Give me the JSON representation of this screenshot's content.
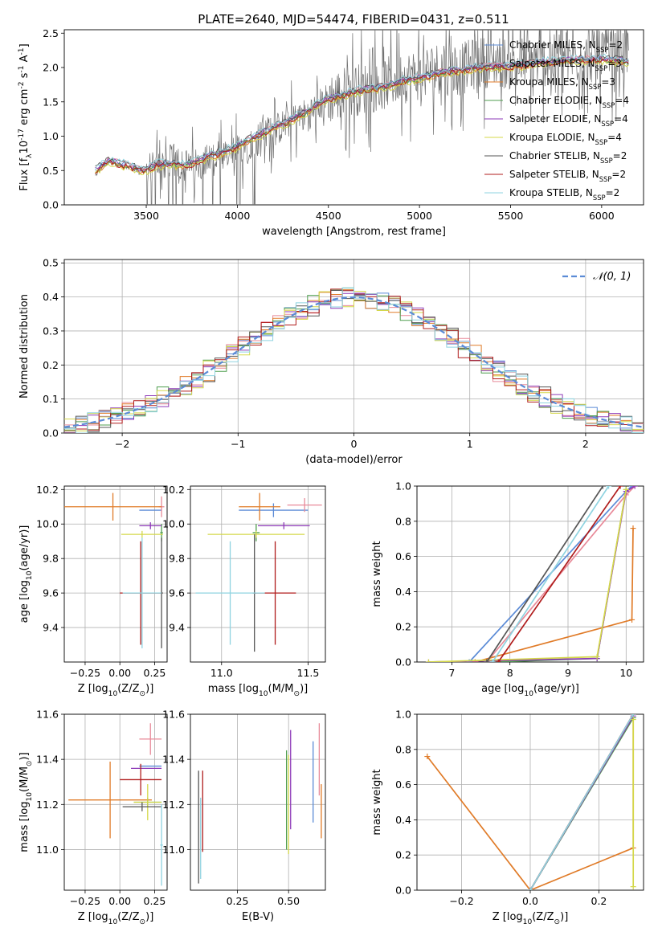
{
  "figure": {
    "title": "PLATE=2640, MJD=54474, FIBERID=0431, z=0.511"
  },
  "series_styles": [
    {
      "name": "Chabrier MILES, N$_{SSP}$=2",
      "label_main": "Chabrier MILES, N",
      "label_sub": "SSP",
      "label_end": "=2",
      "color": "#5b8bd6"
    },
    {
      "name": "Salpeter MILES, N$_{SSP}$=3",
      "label_main": "Salpeter MILES, N",
      "label_sub": "SSP",
      "label_end": "=3",
      "color": "#e88a99"
    },
    {
      "name": "Kroupa MILES, N$_{SSP}$=3",
      "label_main": "Kroupa MILES, N",
      "label_sub": "SSP",
      "label_end": "=3",
      "color": "#e07b28"
    },
    {
      "name": "Chabrier ELODIE, N$_{SSP}$=4",
      "label_main": "Chabrier ELODIE, N",
      "label_sub": "SSP",
      "label_end": "=4",
      "color": "#4f9e4f"
    },
    {
      "name": "Salpeter ELODIE, N$_{SSP}$=4",
      "label_main": "Salpeter ELODIE, N",
      "label_sub": "SSP",
      "label_end": "=4",
      "color": "#8e3ab8"
    },
    {
      "name": "Kroupa ELODIE, N$_{SSP}$=4",
      "label_main": "Kroupa ELODIE, N",
      "label_sub": "SSP",
      "label_end": "=4",
      "color": "#d4d84a"
    },
    {
      "name": "Chabrier STELIB, N$_{SSP}$=2",
      "label_main": "Chabrier STELIB, N",
      "label_sub": "SSP",
      "label_end": "=2",
      "color": "#555555"
    },
    {
      "name": "Salpeter STELIB, N$_{SSP}$=2",
      "label_main": "Salpeter STELIB, N",
      "label_sub": "SSP",
      "label_end": "=2",
      "color": "#b01c1c"
    },
    {
      "name": "Kroupa STELIB, N$_{SSP}$=2",
      "label_main": "Kroupa STELIB, N",
      "label_sub": "SSP",
      "label_end": "=2",
      "color": "#8fd3e0"
    }
  ],
  "chart_data": [
    {
      "id": "spectrum",
      "type": "line",
      "title": "PLATE=2640, MJD=54474, FIBERID=0431, z=0.511",
      "xlabel": "wavelength [Angstrom, rest frame]",
      "ylabel": "Flux [f$_\\lambda$10$^{-17}$ erg cm$^{-2}$ s$^{-1}$ A$^{-1}$]",
      "ylabel_parts": [
        "Flux [f",
        "λ",
        "10",
        "−17",
        " erg cm",
        "−2",
        " s",
        "−1",
        " A",
        "−1",
        "]"
      ],
      "xlim": [
        3050,
        6230
      ],
      "ylim": [
        0,
        2.55
      ],
      "xticks": [
        3500,
        4000,
        4500,
        5000,
        5500,
        6000
      ],
      "xtick_labels": [
        "3500",
        "4000",
        "4500",
        "5000",
        "5500",
        "6000"
      ],
      "yticks": [
        0.0,
        0.5,
        1.0,
        1.5,
        2.0,
        2.5
      ],
      "ytick_labels": [
        "0.0",
        "0.5",
        "1.0",
        "1.5",
        "2.0",
        "2.5"
      ],
      "grid": false,
      "legend": "right",
      "data_color": "#707070",
      "data_profile": {
        "x": [
          3220,
          3260,
          3300,
          3350,
          3400,
          3450,
          3500,
          3550,
          3600,
          3650,
          3700,
          3750,
          3800,
          3850,
          3900,
          3950,
          4000,
          4100,
          4200,
          4300,
          4400,
          4500,
          4600,
          4700,
          4800,
          4900,
          5000,
          5100,
          5200,
          5300,
          5400,
          5500,
          5600,
          5700,
          5800,
          5900,
          6000,
          6100,
          6150
        ],
        "y": [
          0.42,
          0.55,
          0.62,
          0.58,
          0.55,
          0.5,
          0.5,
          0.6,
          0.62,
          0.65,
          0.58,
          0.55,
          0.62,
          0.7,
          0.65,
          0.7,
          0.78,
          0.95,
          1.08,
          1.22,
          1.35,
          1.55,
          1.65,
          1.7,
          1.75,
          1.85,
          1.9,
          2.0,
          1.95,
          2.05,
          2.1,
          2.05,
          2.1,
          2.1,
          2.1,
          2.15,
          2.15,
          2.2,
          2.15
        ]
      },
      "model_profile": {
        "x": [
          3220,
          3260,
          3300,
          3350,
          3400,
          3450,
          3500,
          3550,
          3600,
          3650,
          3700,
          3750,
          3800,
          3850,
          3900,
          3950,
          4000,
          4100,
          4200,
          4300,
          4400,
          4500,
          4600,
          4700,
          4800,
          4900,
          5000,
          5100,
          5200,
          5300,
          5400,
          5500,
          5600,
          5700,
          5800,
          5900,
          6000,
          6100,
          6150
        ],
        "y": [
          0.5,
          0.58,
          0.65,
          0.6,
          0.58,
          0.52,
          0.52,
          0.58,
          0.6,
          0.6,
          0.58,
          0.6,
          0.65,
          0.72,
          0.75,
          0.8,
          0.85,
          1.0,
          1.12,
          1.25,
          1.38,
          1.55,
          1.62,
          1.68,
          1.72,
          1.8,
          1.85,
          1.92,
          1.95,
          2.0,
          2.02,
          2.02,
          2.05,
          2.08,
          2.1,
          2.12,
          2.12,
          2.1,
          2.08
        ]
      },
      "series": [
        {
          "name": "Chabrier MILES, N$_{SSP}$=2",
          "offset": 0.0
        },
        {
          "name": "Salpeter MILES, N$_{SSP}$=3",
          "offset": 0.02
        },
        {
          "name": "Kroupa MILES, N$_{SSP}$=3",
          "offset": -0.03
        },
        {
          "name": "Chabrier ELODIE, N$_{SSP}$=4",
          "offset": -0.01
        },
        {
          "name": "Salpeter ELODIE, N$_{SSP}$=4",
          "offset": 0.01
        },
        {
          "name": "Kroupa ELODIE, N$_{SSP}$=4",
          "offset": -0.05
        },
        {
          "name": "Chabrier STELIB, N$_{SSP}$=2",
          "offset": 0.03
        },
        {
          "name": "Salpeter STELIB, N$_{SSP}$=2",
          "offset": -0.02
        },
        {
          "name": "Kroupa STELIB, N$_{SSP}$=2",
          "offset": 0.04
        }
      ]
    },
    {
      "id": "residuals",
      "type": "bar",
      "xlabel": "(data-model)/error",
      "ylabel": "Normed distribution",
      "xlim": [
        -2.5,
        2.5
      ],
      "ylim": [
        0,
        0.51
      ],
      "xticks": [
        -2,
        -1,
        0,
        1,
        2
      ],
      "xtick_labels": [
        "−2",
        "−1",
        "0",
        "1",
        "2"
      ],
      "yticks": [
        0.0,
        0.1,
        0.2,
        0.3,
        0.4,
        0.5
      ],
      "ytick_labels": [
        "0.0",
        "0.1",
        "0.2",
        "0.3",
        "0.4",
        "0.5"
      ],
      "grid": true,
      "legend": "top-right",
      "gauss_label": "𝒩(0, 1)",
      "gauss_color": "#5b8bd6",
      "bin_width": 0.1,
      "bin_start": -2.5,
      "hist_offsets": [
        0.0,
        0.015,
        -0.01,
        0.02,
        -0.015,
        0.01,
        -0.02,
        0.018,
        -0.008
      ]
    },
    {
      "id": "age_vs_Z",
      "type": "scatter",
      "xlabel": "Z [log$_{10}$(Z/Z$_\\odot$)]",
      "ylabel": "age  [log$_{10}$(age/yr)]",
      "xlim": [
        -0.4,
        0.34
      ],
      "ylim": [
        9.2,
        10.22
      ],
      "xticks": [
        -0.25,
        0.0,
        0.25
      ],
      "xtick_labels": [
        "−0.25",
        "0.00",
        "0.25"
      ],
      "yticks": [
        9.4,
        9.6,
        9.8,
        10.0,
        10.2
      ],
      "ytick_labels": [
        "9.4",
        "9.6",
        "9.8",
        "10.0",
        "10.2"
      ],
      "grid": true,
      "points": [
        {
          "series": 0,
          "x": 0.22,
          "y": 10.08,
          "xerr": 0.08,
          "yerr": 0.0
        },
        {
          "series": 1,
          "x": 0.3,
          "y": 10.1,
          "xerr": 0.02,
          "yerr": 0.06
        },
        {
          "series": 2,
          "x": -0.05,
          "y": 10.1,
          "xerr": 0.35,
          "yerr": 0.08
        },
        {
          "series": 3,
          "x": 0.3,
          "y": 9.95,
          "xerr": 0.01,
          "yerr": 0.05
        },
        {
          "series": 4,
          "x": 0.22,
          "y": 9.99,
          "xerr": 0.08,
          "yerr": 0.02
        },
        {
          "series": 5,
          "x": 0.16,
          "y": 9.94,
          "xerr": 0.15,
          "yerr": 0.02
        },
        {
          "series": 6,
          "x": 0.3,
          "y": 9.6,
          "xerr": 0.01,
          "yerr": 0.32
        },
        {
          "series": 7,
          "x": 0.15,
          "y": 9.6,
          "xerr": 0.15,
          "yerr": 0.3
        },
        {
          "series": 8,
          "x": 0.16,
          "y": 9.6,
          "xerr": 0.14,
          "yerr": 0.32
        }
      ]
    },
    {
      "id": "age_vs_mass",
      "type": "scatter",
      "xlabel": "mass [log$_{10}$(M/M$_\\odot$)]",
      "ylabel": "",
      "xlim": [
        10.82,
        11.6
      ],
      "ylim": [
        9.2,
        10.22
      ],
      "xticks": [
        11.0,
        11.5
      ],
      "xtick_labels": [
        "11.0",
        "11.5"
      ],
      "yticks": [
        9.4,
        9.6,
        9.8,
        10.0,
        10.2
      ],
      "ytick_labels": [
        "9.4",
        "9.6",
        "9.8",
        "10.0",
        "10.2"
      ],
      "grid": true,
      "points": [
        {
          "series": 0,
          "x": 11.3,
          "y": 10.08,
          "xerr": 0.2,
          "yerr": 0.04
        },
        {
          "series": 1,
          "x": 11.48,
          "y": 10.11,
          "xerr": 0.1,
          "yerr": 0.04
        },
        {
          "series": 2,
          "x": 11.22,
          "y": 10.1,
          "xerr": 0.12,
          "yerr": 0.08
        },
        {
          "series": 3,
          "x": 11.2,
          "y": 9.95,
          "xerr": 0.02,
          "yerr": 0.05
        },
        {
          "series": 4,
          "x": 11.36,
          "y": 9.99,
          "xerr": 0.15,
          "yerr": 0.02
        },
        {
          "series": 5,
          "x": 11.2,
          "y": 9.94,
          "xerr": 0.28,
          "yerr": 0.02
        },
        {
          "series": 6,
          "x": 11.19,
          "y": 9.6,
          "xerr": 0.01,
          "yerr": 0.34
        },
        {
          "series": 7,
          "x": 11.31,
          "y": 9.6,
          "xerr": 0.12,
          "yerr": 0.3
        },
        {
          "series": 8,
          "x": 11.05,
          "y": 9.6,
          "xerr": 0.2,
          "yerr": 0.3
        }
      ]
    },
    {
      "id": "mass_weight_vs_age",
      "type": "line",
      "xlabel": "age  [log$_{10}$(age/yr)]",
      "ylabel": "mass weight",
      "xlim": [
        6.4,
        10.3
      ],
      "ylim": [
        0,
        1.0
      ],
      "xticks": [
        7,
        8,
        9,
        10
      ],
      "xtick_labels": [
        "7",
        "8",
        "9",
        "10"
      ],
      "yticks": [
        0.0,
        0.2,
        0.4,
        0.6,
        0.8,
        1.0
      ],
      "ytick_labels": [
        "0.0",
        "0.2",
        "0.4",
        "0.6",
        "0.8",
        "1.0"
      ],
      "grid": true,
      "series": [
        {
          "series": 0,
          "x": [
            7.3,
            10.0,
            10.1
          ],
          "y": [
            0.0,
            0.97,
            1.0
          ]
        },
        {
          "series": 1,
          "x": [
            7.6,
            10.0,
            10.15
          ],
          "y": [
            0.0,
            0.95,
            1.0
          ]
        },
        {
          "series": 2,
          "x": [
            7.4,
            10.1,
            10.12
          ],
          "y": [
            0.0,
            0.24,
            0.76
          ]
        },
        {
          "series": 3,
          "x": [
            7.7,
            9.5,
            10.0
          ],
          "y": [
            0.0,
            0.02,
            0.98
          ]
        },
        {
          "series": 4,
          "x": [
            6.6,
            9.5,
            10.0,
            10.15
          ],
          "y": [
            0.0,
            0.02,
            0.97,
            1.0
          ]
        },
        {
          "series": 5,
          "x": [
            6.6,
            9.5,
            10.0
          ],
          "y": [
            0.0,
            0.03,
            0.98
          ]
        },
        {
          "series": 6,
          "x": [
            7.6,
            9.6
          ],
          "y": [
            0.0,
            1.0
          ]
        },
        {
          "series": 7,
          "x": [
            7.8,
            9.9
          ],
          "y": [
            0.0,
            1.0
          ]
        },
        {
          "series": 8,
          "x": [
            7.7,
            9.7
          ],
          "y": [
            0.0,
            1.0
          ]
        }
      ]
    },
    {
      "id": "mass_vs_Z",
      "type": "scatter",
      "xlabel": "Z [log$_{10}$(Z/Z$_\\odot$)]",
      "ylabel": "mass [log$_{10}$(M/M$_\\odot$)]",
      "xlim": [
        -0.4,
        0.34
      ],
      "ylim": [
        10.82,
        11.6
      ],
      "xticks": [
        -0.25,
        0.0,
        0.25
      ],
      "xtick_labels": [
        "−0.25",
        "0.00",
        "0.25"
      ],
      "yticks": [
        11.0,
        11.2,
        11.4,
        11.6
      ],
      "ytick_labels": [
        "11.0",
        "11.2",
        "11.4",
        "11.6"
      ],
      "grid": true,
      "points": [
        {
          "series": 0,
          "x": 0.22,
          "y": 11.37,
          "xerr": 0.08,
          "yerr": 0.0
        },
        {
          "series": 1,
          "x": 0.22,
          "y": 11.49,
          "xerr": 0.08,
          "yerr": 0.07
        },
        {
          "series": 2,
          "x": -0.07,
          "y": 11.22,
          "xerr": 0.3,
          "yerr": 0.17
        },
        {
          "series": 3,
          "x": 0.2,
          "y": 11.21,
          "xerr": 0.1,
          "yerr": 0.02
        },
        {
          "series": 4,
          "x": 0.19,
          "y": 11.36,
          "xerr": 0.11,
          "yerr": 0.0
        },
        {
          "series": 5,
          "x": 0.2,
          "y": 11.21,
          "xerr": 0.1,
          "yerr": 0.08
        },
        {
          "series": 6,
          "x": 0.16,
          "y": 11.19,
          "xerr": 0.14,
          "yerr": 0.02
        },
        {
          "series": 7,
          "x": 0.15,
          "y": 11.31,
          "xerr": 0.15,
          "yerr": 0.07
        },
        {
          "series": 8,
          "x": 0.3,
          "y": 11.02,
          "xerr": 0.01,
          "yerr": 0.18
        }
      ]
    },
    {
      "id": "mass_vs_ebv",
      "type": "scatter",
      "xlabel": "E(B-V)",
      "ylabel": "",
      "xlim": [
        0.02,
        0.68
      ],
      "ylim": [
        10.82,
        11.6
      ],
      "xticks": [
        0.25,
        0.5
      ],
      "xtick_labels": [
        "0.25",
        "0.50"
      ],
      "yticks": [
        11.0,
        11.2,
        11.4,
        11.6
      ],
      "ytick_labels": [
        "11.0",
        "11.2",
        "11.4",
        "11.6"
      ],
      "grid": true,
      "points": [
        {
          "series": 0,
          "x": 0.62,
          "y": 11.3,
          "xerr": 0.0,
          "yerr": 0.18
        },
        {
          "series": 1,
          "x": 0.65,
          "y": 11.4,
          "xerr": 0.0,
          "yerr": 0.16
        },
        {
          "series": 2,
          "x": 0.66,
          "y": 11.17,
          "xerr": 0.0,
          "yerr": 0.12
        },
        {
          "series": 3,
          "x": 0.49,
          "y": 11.22,
          "xerr": 0.0,
          "yerr": 0.22
        },
        {
          "series": 4,
          "x": 0.51,
          "y": 11.31,
          "xerr": 0.0,
          "yerr": 0.22
        },
        {
          "series": 5,
          "x": 0.5,
          "y": 11.2,
          "xerr": 0.0,
          "yerr": 0.22
        },
        {
          "series": 6,
          "x": 0.06,
          "y": 11.1,
          "xerr": 0.0,
          "yerr": 0.25
        },
        {
          "series": 7,
          "x": 0.08,
          "y": 11.17,
          "xerr": 0.0,
          "yerr": 0.18
        },
        {
          "series": 8,
          "x": 0.07,
          "y": 11.05,
          "xerr": 0.0,
          "yerr": 0.18
        }
      ]
    },
    {
      "id": "mass_weight_vs_Z",
      "type": "line",
      "xlabel": "Z [log$_{10}$(Z/Z$_\\odot$)]",
      "ylabel": "mass weight",
      "xlim": [
        -0.33,
        0.33
      ],
      "ylim": [
        0,
        1.0
      ],
      "xticks": [
        -0.2,
        0.0,
        0.2
      ],
      "xtick_labels": [
        "−0.2",
        "0.0",
        "0.2"
      ],
      "yticks": [
        0.0,
        0.2,
        0.4,
        0.6,
        0.8,
        1.0
      ],
      "ytick_labels": [
        "0.0",
        "0.2",
        "0.4",
        "0.6",
        "0.8",
        "1.0"
      ],
      "grid": true,
      "series": [
        {
          "series": 0,
          "x": [
            0.0,
            0.3
          ],
          "y": [
            0.0,
            1.0
          ]
        },
        {
          "series": 1,
          "x": [
            0.0,
            0.3
          ],
          "y": [
            0.0,
            1.0
          ]
        },
        {
          "series": 2,
          "x": [
            -0.3,
            0.0,
            0.3,
            0.3
          ],
          "y": [
            0.76,
            0.0,
            0.24,
            1.0
          ]
        },
        {
          "series": 3,
          "x": [
            0.0,
            0.3
          ],
          "y": [
            0.0,
            0.98
          ]
        },
        {
          "series": 4,
          "x": [
            0.0,
            0.3
          ],
          "y": [
            0.0,
            0.99
          ]
        },
        {
          "series": 5,
          "x": [
            0.3,
            0.3
          ],
          "y": [
            0.02,
            0.97
          ]
        },
        {
          "series": 6,
          "x": [
            0.0,
            0.3
          ],
          "y": [
            0.0,
            1.0
          ]
        },
        {
          "series": 7,
          "x": [
            0.0,
            0.3
          ],
          "y": [
            0.0,
            1.0
          ]
        },
        {
          "series": 8,
          "x": [
            0.0,
            0.3
          ],
          "y": [
            0.0,
            1.0
          ]
        }
      ]
    }
  ]
}
